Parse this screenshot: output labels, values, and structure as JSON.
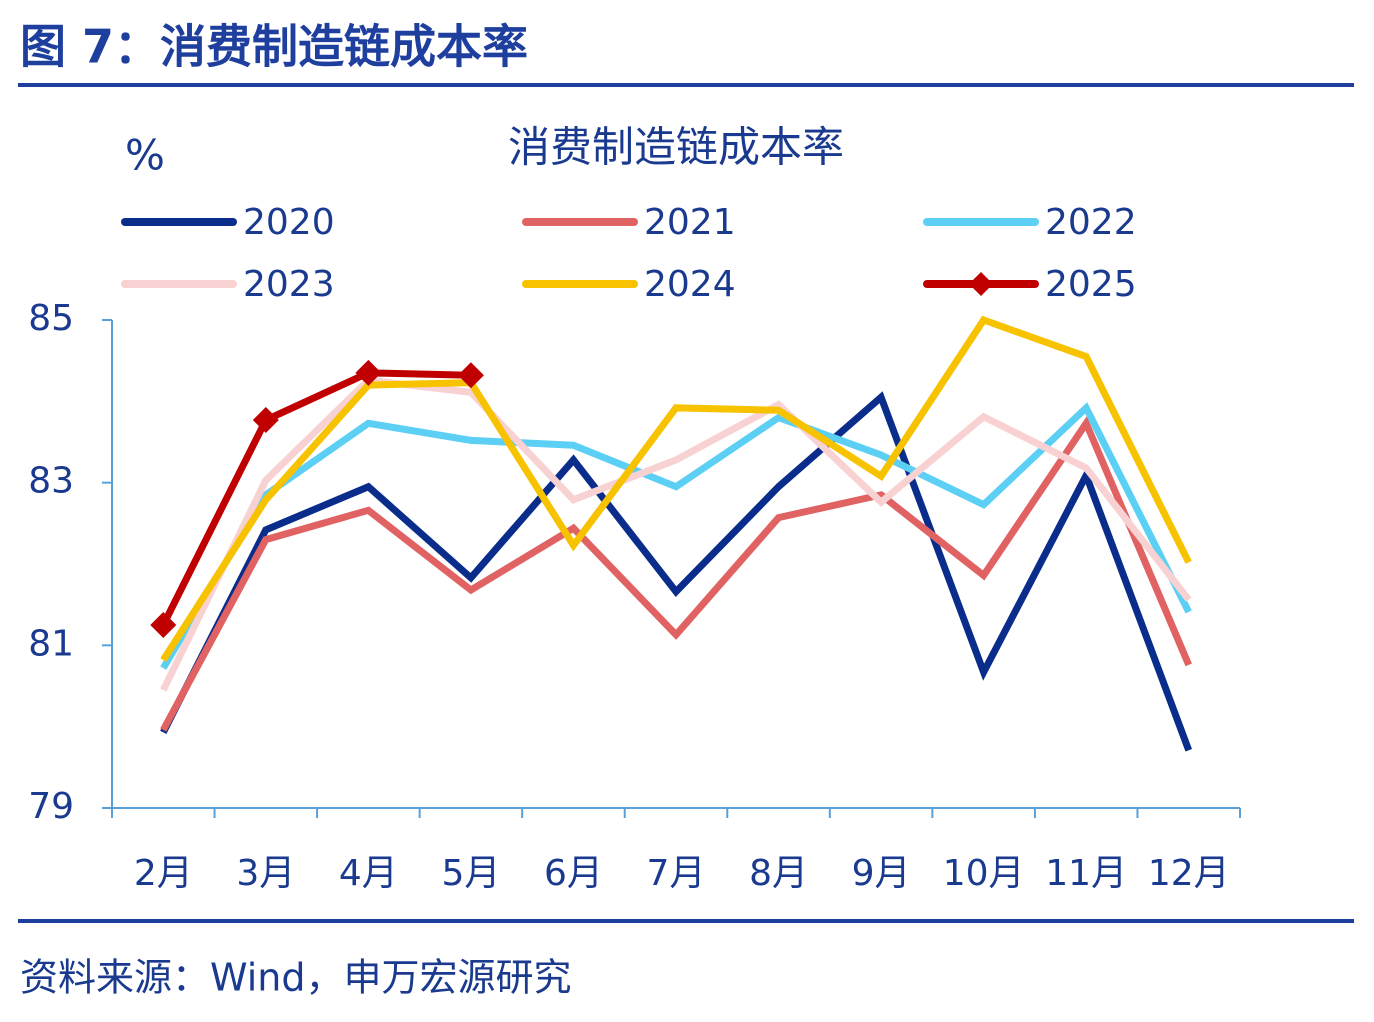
{
  "header": {
    "title": "图 7：消费制造链成本率"
  },
  "footer": {
    "source": "资料来源：Wind，申万宏源研究"
  },
  "chart_data": {
    "type": "line",
    "title": "消费制造链成本率",
    "y_label": "%",
    "categories": [
      "2月",
      "3月",
      "4月",
      "5月",
      "6月",
      "7月",
      "8月",
      "9月",
      "10月",
      "11月",
      "12月"
    ],
    "ylim": [
      79,
      85
    ],
    "yticks": [
      79,
      81,
      83,
      85
    ],
    "series": [
      {
        "name": "2020",
        "color": "#0a2d8c",
        "values": [
          79.93,
          82.42,
          82.95,
          81.83,
          83.28,
          81.66,
          82.95,
          84.05,
          80.67,
          83.09,
          79.71
        ]
      },
      {
        "name": "2021",
        "color": "#e06262",
        "values": [
          79.96,
          82.3,
          82.66,
          81.68,
          82.44,
          81.13,
          82.57,
          82.85,
          81.86,
          83.73,
          80.76
        ]
      },
      {
        "name": "2022",
        "color": "#5ccff5",
        "values": [
          80.72,
          82.85,
          83.73,
          83.52,
          83.46,
          82.95,
          83.8,
          83.34,
          82.73,
          83.92,
          81.41
        ]
      },
      {
        "name": "2023",
        "color": "#f8d2d2",
        "values": [
          80.45,
          83.03,
          84.26,
          84.11,
          82.79,
          83.28,
          83.96,
          82.76,
          83.81,
          83.18,
          81.56
        ]
      },
      {
        "name": "2024",
        "color": "#f7c200",
        "values": [
          80.82,
          82.79,
          84.2,
          84.23,
          82.23,
          83.92,
          83.89,
          83.08,
          85.0,
          84.55,
          82.02
        ]
      },
      {
        "name": "2025",
        "color": "#c00000",
        "markers": true,
        "values": [
          81.25,
          83.77,
          84.35,
          84.32,
          null,
          null,
          null,
          null,
          null,
          null,
          null
        ]
      }
    ]
  }
}
